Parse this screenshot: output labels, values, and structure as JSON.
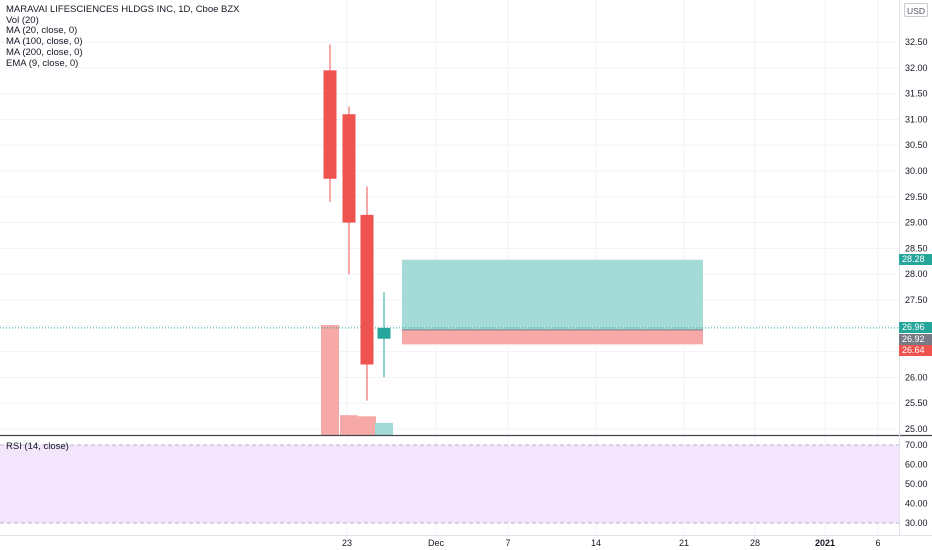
{
  "legend": {
    "title": "MARAVAI LIFESCIENCES HLDGS INC, 1D, Cboe BZX",
    "indicators": [
      "Vol (20)",
      "MA (20, close, 0)",
      "MA (100, close, 0)",
      "MA (200, close, 0)",
      "EMA (9, close, 0)"
    ]
  },
  "currency": "USD",
  "rsi_title": "RSI (14, close)",
  "colors": {
    "up": "#26a69a",
    "down": "#ef5350",
    "profit_zone": "#a5dbd6",
    "loss_zone": "#f7a9a7",
    "rsi_bg": "#f3e6fc"
  },
  "price_tags": [
    {
      "value": "28.28",
      "color": "#26a69a"
    },
    {
      "value": "26.96",
      "color": "#26a69a"
    },
    {
      "value": "26.92",
      "color": "#787b86"
    },
    {
      "value": "26.64",
      "color": "#ef5350"
    }
  ],
  "chart_data": [
    {
      "type": "candlestick",
      "title": "MARAVAI LIFESCIENCES HLDGS INC, 1D, Cboe BZX",
      "x_ticks": [
        "23",
        "Dec",
        "7",
        "14",
        "21",
        "28",
        "2021",
        "6"
      ],
      "ylim": [
        24.8,
        32.9
      ],
      "y_ticks": [
        "25.00",
        "25.50",
        "26.00",
        "26.50",
        "27.00",
        "27.50",
        "28.00",
        "28.50",
        "29.00",
        "29.50",
        "30.00",
        "30.50",
        "31.00",
        "31.50",
        "32.00",
        "32.50"
      ],
      "series": [
        {
          "candles": [
            {
              "open": 31.95,
              "high": 32.45,
              "low": 29.4,
              "close": 29.85
            },
            {
              "open": 31.1,
              "high": 31.25,
              "low": 28.0,
              "close": 29.0
            },
            {
              "open": 29.15,
              "high": 29.7,
              "low": 25.55,
              "close": 26.25
            },
            {
              "open": 26.75,
              "high": 27.65,
              "low": 26.0,
              "close": 26.96
            }
          ]
        }
      ],
      "volume_relative": [
        1.0,
        0.18,
        0.17,
        0.11
      ],
      "position_tool": {
        "entry": 26.92,
        "target": 28.28,
        "stop": 26.64
      },
      "last_price": 26.96
    },
    {
      "type": "line",
      "title": "RSI (14, close)",
      "ylim": [
        28,
        72
      ],
      "y_ticks": [
        "70.00",
        "60.00",
        "50.00",
        "40.00",
        "30.00"
      ],
      "levels": [
        70,
        30
      ]
    }
  ]
}
